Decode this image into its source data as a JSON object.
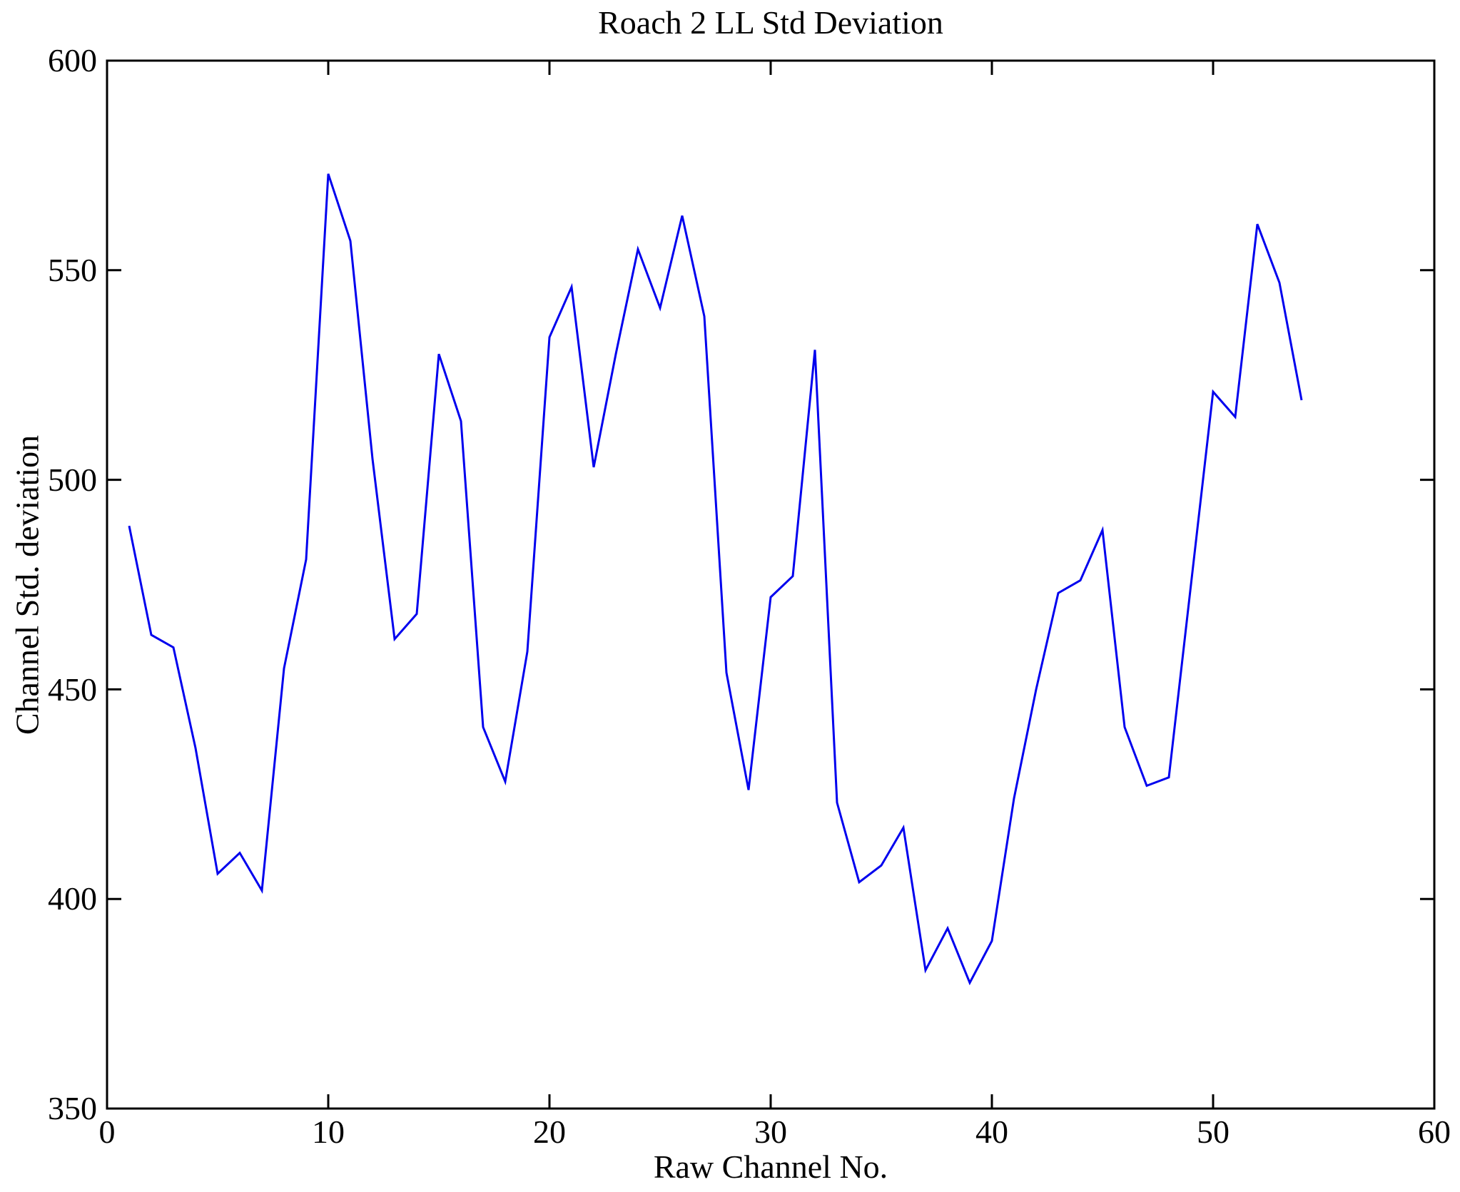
{
  "chart_data": {
    "type": "line",
    "title": "Roach 2 LL Std Deviation",
    "xlabel": "Raw Channel No.",
    "ylabel": "Channel Std. deviation",
    "xlim": [
      0,
      60
    ],
    "ylim": [
      350,
      600
    ],
    "x_ticks": [
      0,
      10,
      20,
      30,
      40,
      50,
      60
    ],
    "y_ticks": [
      350,
      400,
      450,
      500,
      550,
      600
    ],
    "x_tick_labels": [
      "0",
      "10",
      "20",
      "30",
      "40",
      "50",
      "60"
    ],
    "y_tick_labels": [
      "600",
      "550",
      "500",
      "450",
      "400",
      "350"
    ],
    "grid": false,
    "legend_position": "none",
    "line_color": "#0000EE",
    "axis_color": "#000000",
    "background_color": "#FFFFFF",
    "x": [
      1,
      2,
      3,
      4,
      5,
      6,
      7,
      8,
      9,
      10,
      11,
      12,
      13,
      14,
      15,
      16,
      17,
      18,
      19,
      20,
      21,
      22,
      23,
      24,
      25,
      26,
      27,
      28,
      29,
      30,
      31,
      32,
      33,
      34,
      35,
      36,
      37,
      38,
      39,
      40,
      41,
      42,
      43,
      44,
      45,
      46,
      47,
      48,
      49,
      50,
      51,
      52,
      53,
      54
    ],
    "values": [
      489,
      463,
      460,
      436,
      406,
      411,
      402,
      455,
      481,
      573,
      557,
      505,
      462,
      468,
      530,
      514,
      441,
      428,
      459,
      534,
      546,
      503,
      530,
      555,
      541,
      563,
      539,
      454,
      426,
      472,
      477,
      531,
      423,
      404,
      408,
      417,
      383,
      393,
      380,
      390,
      424,
      450,
      473,
      476,
      488,
      441,
      427,
      429,
      475,
      521,
      515,
      561,
      547,
      519
    ]
  }
}
